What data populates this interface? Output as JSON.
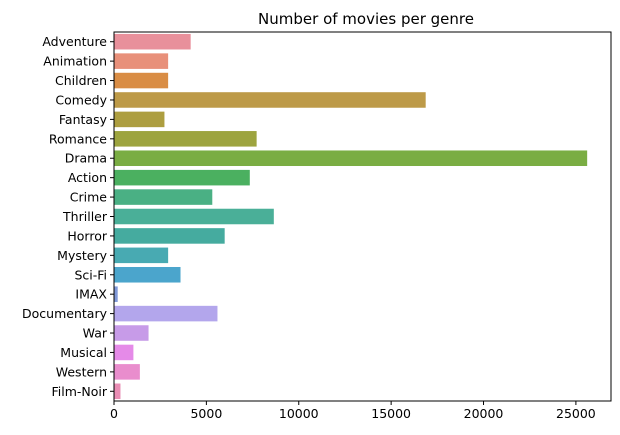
{
  "chart_data": {
    "type": "bar",
    "orientation": "horizontal",
    "title": "Number of movies per genre",
    "xlabel": "",
    "ylabel": "",
    "xlim": [
      0,
      26900
    ],
    "xticks": [
      0,
      5000,
      10000,
      15000,
      20000,
      25000
    ],
    "xtick_labels": [
      "0",
      "5000",
      "10000",
      "15000",
      "20000",
      "25000"
    ],
    "grid": false,
    "legend": "none",
    "categories": [
      "Adventure",
      "Animation",
      "Children",
      "Comedy",
      "Fantasy",
      "Romance",
      "Drama",
      "Action",
      "Crime",
      "Thriller",
      "Horror",
      "Mystery",
      "Sci-Fi",
      "IMAX",
      "Documentary",
      "War",
      "Musical",
      "Western",
      "Film-Noir"
    ],
    "values": [
      4150,
      2930,
      2930,
      16870,
      2730,
      7720,
      25610,
      7350,
      5320,
      8650,
      5990,
      2930,
      3600,
      200,
      5600,
      1870,
      1050,
      1400,
      350
    ],
    "colors": [
      "#e8909b",
      "#e8907a",
      "#d98d45",
      "#bd9a48",
      "#ad9e40",
      "#9da43f",
      "#7aad43",
      "#4bb060",
      "#4ab084",
      "#4aaf98",
      "#45ab9f",
      "#48aab2",
      "#4ba5cc",
      "#7f98d8",
      "#b3a6ec",
      "#c79be8",
      "#e58ae8",
      "#e98dcd",
      "#e98db4"
    ]
  }
}
